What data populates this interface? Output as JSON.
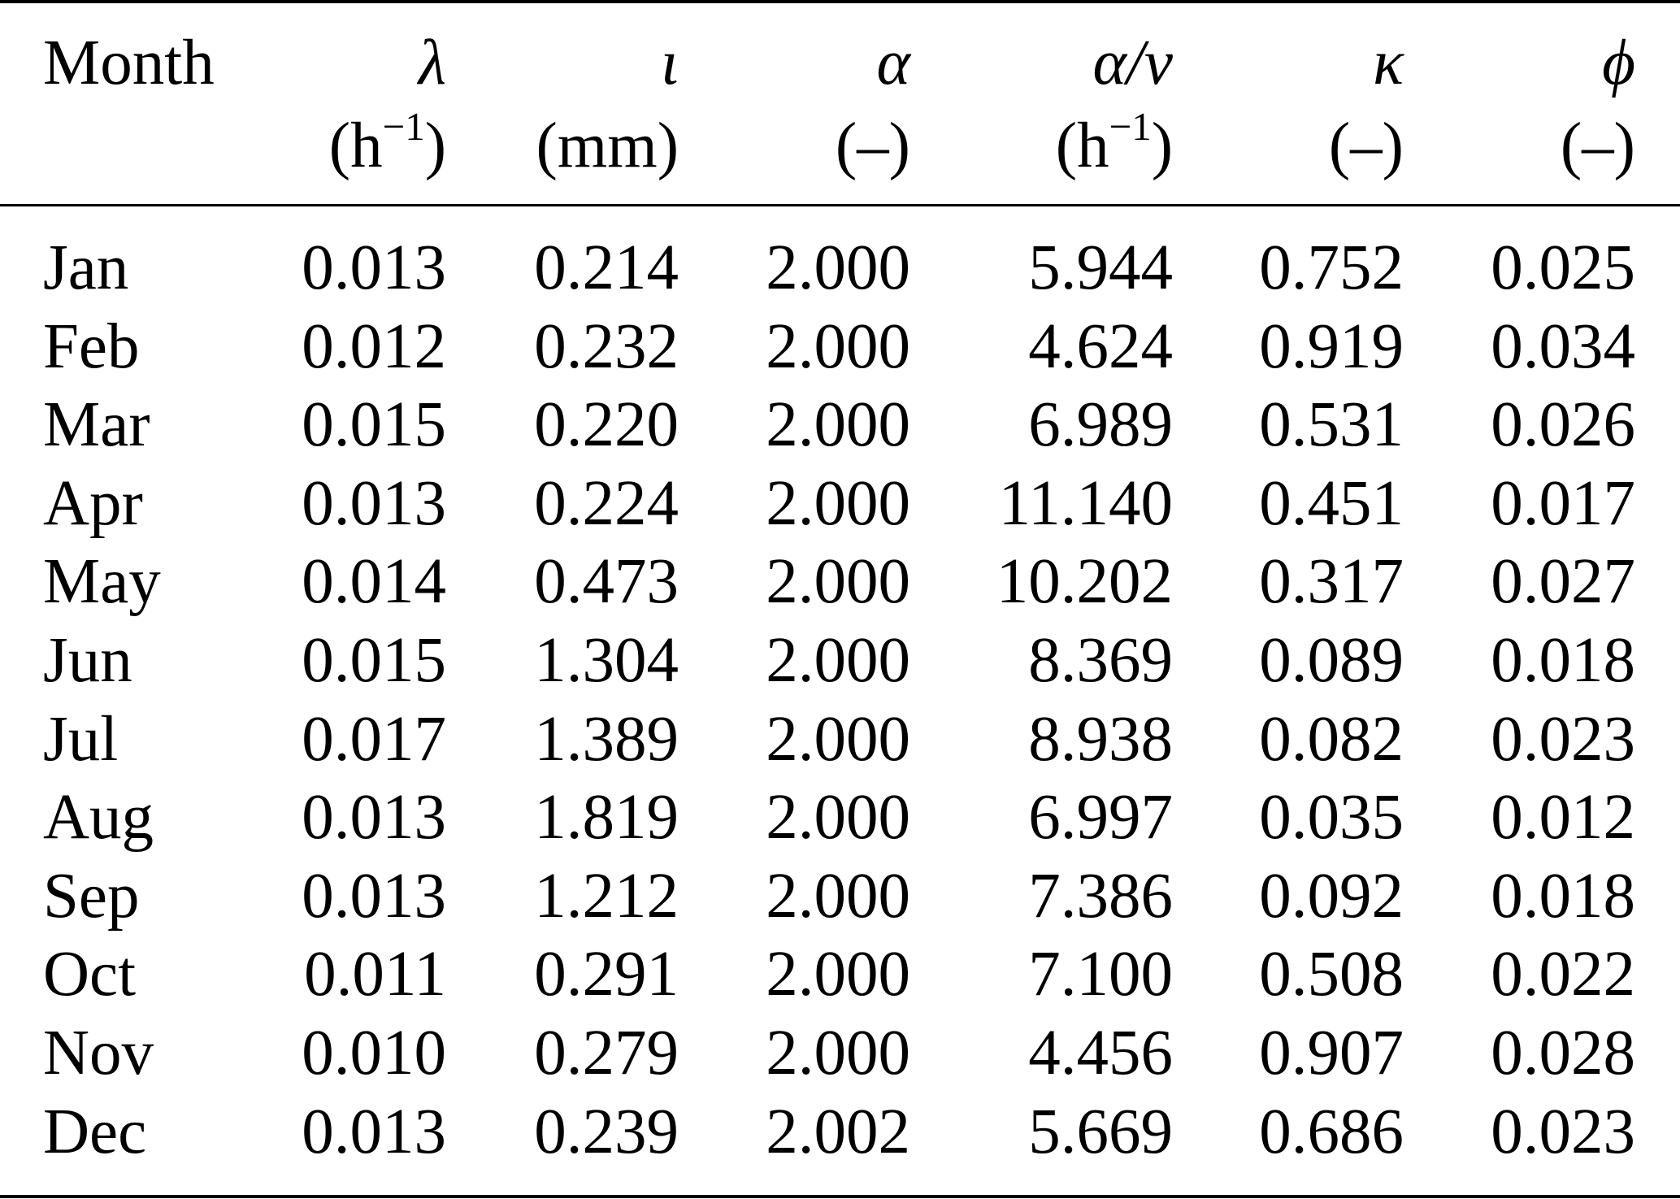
{
  "table": {
    "header": {
      "month": "Month",
      "columns": [
        {
          "symbol": "λ",
          "unit_base": "(h",
          "unit_exp": "−1",
          "unit_tail": ")"
        },
        {
          "symbol": "ι",
          "unit_base": "(mm)",
          "unit_exp": "",
          "unit_tail": ""
        },
        {
          "symbol": "α",
          "unit_base": "(–)",
          "unit_exp": "",
          "unit_tail": ""
        },
        {
          "symbol": "α/ν",
          "unit_base": "(h",
          "unit_exp": "−1",
          "unit_tail": ")"
        },
        {
          "symbol": "κ",
          "unit_base": "(–)",
          "unit_exp": "",
          "unit_tail": ""
        },
        {
          "symbol": "ϕ",
          "unit_base": "(–)",
          "unit_exp": "",
          "unit_tail": ""
        }
      ]
    },
    "rows": [
      {
        "month": "Jan",
        "values": [
          "0.013",
          "0.214",
          "2.000",
          "5.944",
          "0.752",
          "0.025"
        ]
      },
      {
        "month": "Feb",
        "values": [
          "0.012",
          "0.232",
          "2.000",
          "4.624",
          "0.919",
          "0.034"
        ]
      },
      {
        "month": "Mar",
        "values": [
          "0.015",
          "0.220",
          "2.000",
          "6.989",
          "0.531",
          "0.026"
        ]
      },
      {
        "month": "Apr",
        "values": [
          "0.013",
          "0.224",
          "2.000",
          "11.140",
          "0.451",
          "0.017"
        ]
      },
      {
        "month": "May",
        "values": [
          "0.014",
          "0.473",
          "2.000",
          "10.202",
          "0.317",
          "0.027"
        ]
      },
      {
        "month": "Jun",
        "values": [
          "0.015",
          "1.304",
          "2.000",
          "8.369",
          "0.089",
          "0.018"
        ]
      },
      {
        "month": "Jul",
        "values": [
          "0.017",
          "1.389",
          "2.000",
          "8.938",
          "0.082",
          "0.023"
        ]
      },
      {
        "month": "Aug",
        "values": [
          "0.013",
          "1.819",
          "2.000",
          "6.997",
          "0.035",
          "0.012"
        ]
      },
      {
        "month": "Sep",
        "values": [
          "0.013",
          "1.212",
          "2.000",
          "7.386",
          "0.092",
          "0.018"
        ]
      },
      {
        "month": "Oct",
        "values": [
          "0.011",
          "0.291",
          "2.000",
          "7.100",
          "0.508",
          "0.022"
        ]
      },
      {
        "month": "Nov",
        "values": [
          "0.010",
          "0.279",
          "2.000",
          "4.456",
          "0.907",
          "0.028"
        ]
      },
      {
        "month": "Dec",
        "values": [
          "0.013",
          "0.239",
          "2.002",
          "5.669",
          "0.686",
          "0.023"
        ]
      }
    ]
  }
}
